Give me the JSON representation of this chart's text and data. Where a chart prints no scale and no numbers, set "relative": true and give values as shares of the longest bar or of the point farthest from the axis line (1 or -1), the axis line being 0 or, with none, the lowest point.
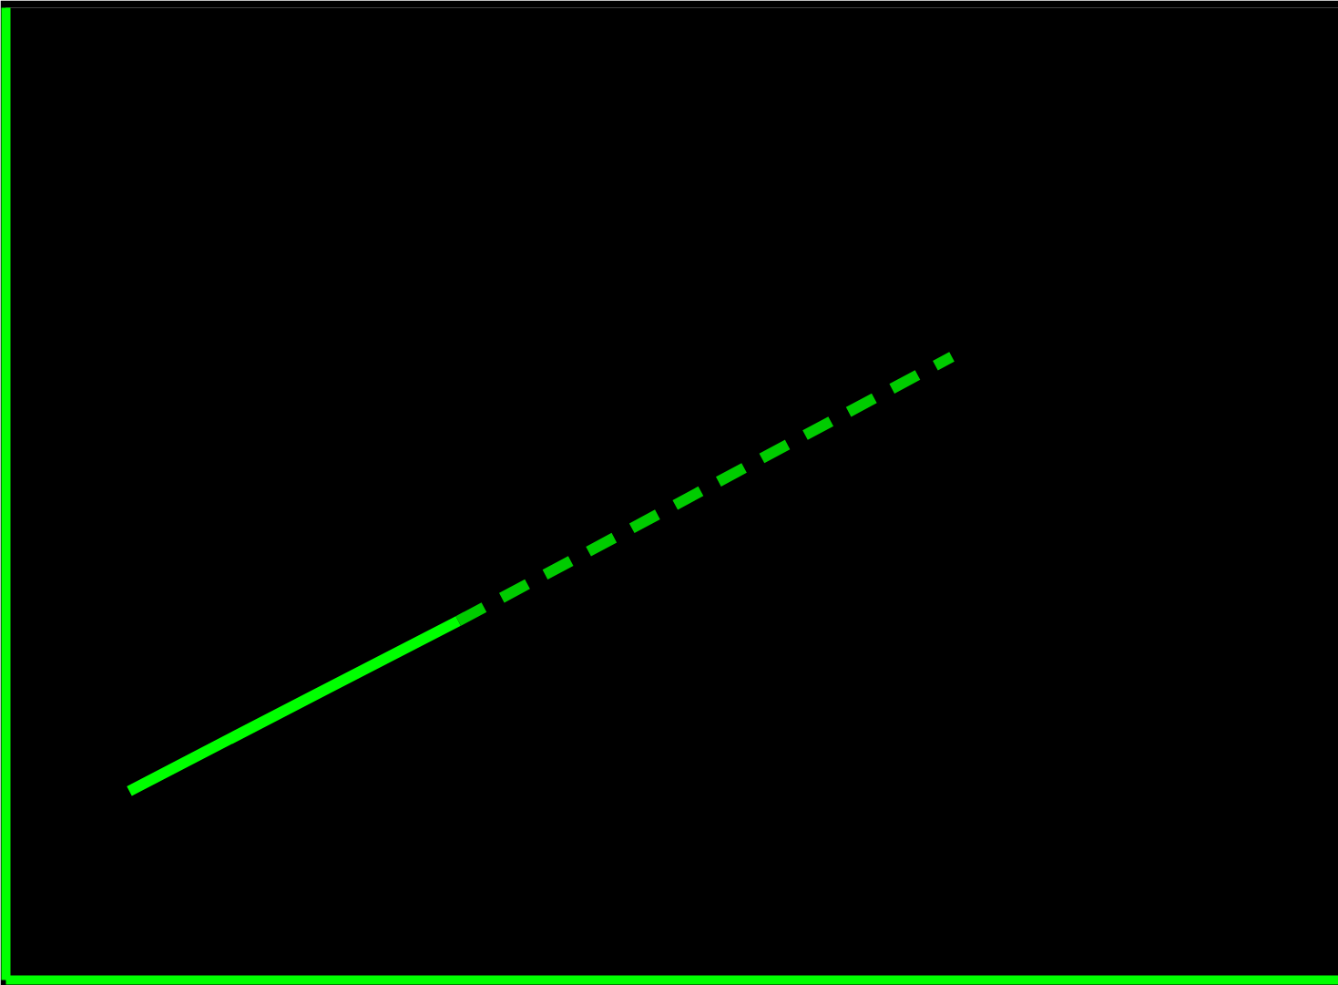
{
  "chart_data": {
    "type": "line",
    "relative": true,
    "categories": [
      null,
      null,
      null,
      null,
      null,
      null
    ],
    "tick_labels": false,
    "series": [
      {
        "color": "#00ff00",
        "line_style": "solid",
        "values": [
          0.303,
          0.44,
          0.576,
          null,
          null,
          null
        ]
      },
      {
        "color": "#00cc00",
        "line_style": "dashed",
        "values": [
          null,
          null,
          0.576,
          0.717,
          0.859,
          1.0
        ]
      }
    ]
  }
}
